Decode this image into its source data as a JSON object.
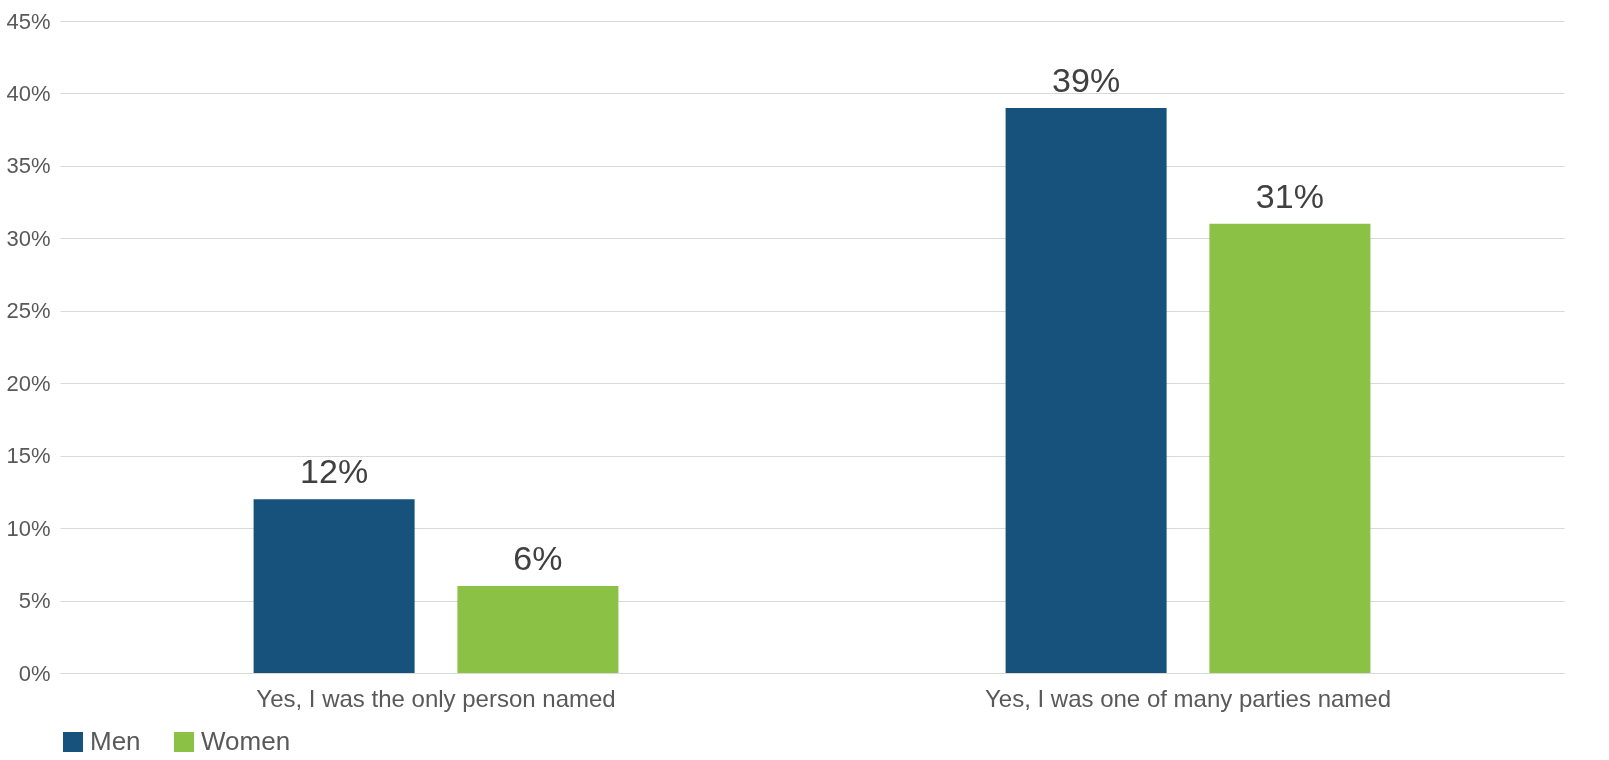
{
  "chart_data": {
    "type": "bar",
    "categories": [
      "Yes, I was the only person named",
      "Yes, I was one of many parties named"
    ],
    "series": [
      {
        "name": "Men",
        "color": "#17527d",
        "values": [
          12,
          39
        ],
        "value_labels": [
          "12%",
          "39%"
        ]
      },
      {
        "name": "Women",
        "color": "#8bc145",
        "values": [
          6,
          31
        ],
        "value_labels": [
          "6%",
          "31%"
        ]
      }
    ],
    "ylim": [
      0,
      45
    ],
    "yticks": [
      {
        "value": 0,
        "label": "0%"
      },
      {
        "value": 5,
        "label": "5%"
      },
      {
        "value": 10,
        "label": "10%"
      },
      {
        "value": 15,
        "label": "15%"
      },
      {
        "value": 20,
        "label": "20%"
      },
      {
        "value": 25,
        "label": "25%"
      },
      {
        "value": 30,
        "label": "30%"
      },
      {
        "value": 35,
        "label": "35%"
      },
      {
        "value": 40,
        "label": "40%"
      },
      {
        "value": 45,
        "label": "45%"
      }
    ],
    "grid": "y",
    "legend": "bottom"
  }
}
